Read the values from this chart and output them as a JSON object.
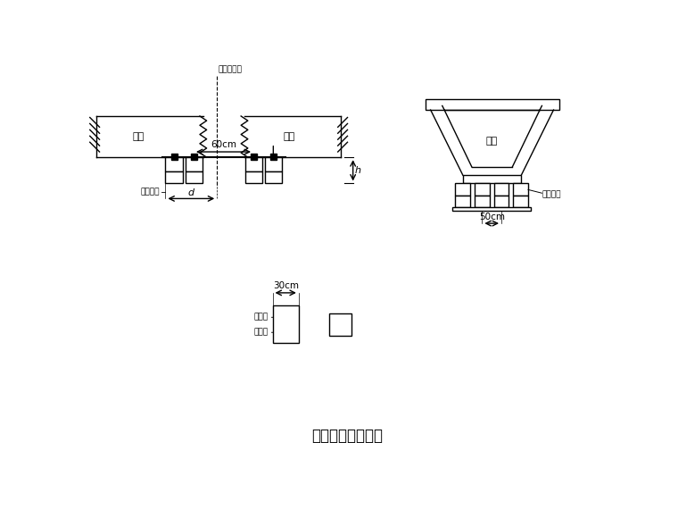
{
  "title": "非连续端临时支座",
  "title_fontsize": 12,
  "bg_color": "#ffffff",
  "line_color": "#000000",
  "left_view": {
    "label_zhuliang_l": "主梁",
    "label_zhuliang_r": "主梁",
    "label_center": "桥梁中心线",
    "label_support": "制支承线",
    "label_60cm": "60cm",
    "label_d": "d",
    "label_h": "h"
  },
  "right_view": {
    "label_zhuliang": "主梁",
    "label_zhidian": "新型垫压",
    "label_50cm": "50cm"
  },
  "bottom_view": {
    "label_30cm": "30cm",
    "label_ganbanl": "钢管垫",
    "label_muban": "木板垫"
  }
}
